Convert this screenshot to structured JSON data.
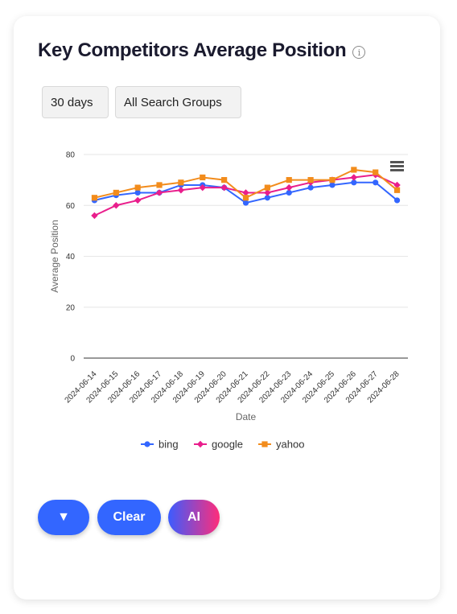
{
  "header": {
    "title": "Key Competitors Average Position",
    "info_icon": "info-circle-icon"
  },
  "filters": {
    "period": "30 days",
    "group": "All Search Groups"
  },
  "chart_data": {
    "type": "line",
    "title": "",
    "xlabel": "Date",
    "ylabel": "Average Position",
    "ylim": [
      0,
      80
    ],
    "yticks": [
      "0",
      "20",
      "40",
      "60",
      "80"
    ],
    "grid": true,
    "legend_position": "bottom",
    "categories": [
      "2024-06-14",
      "2024-06-15",
      "2024-06-16",
      "2024-06-17",
      "2024-06-18",
      "2024-06-19",
      "2024-06-20",
      "2024-06-21",
      "2024-06-22",
      "2024-06-23",
      "2024-06-24",
      "2024-06-25",
      "2024-06-26",
      "2024-06-27",
      "2024-06-28"
    ],
    "series": [
      {
        "name": "bing",
        "color": "#3366ff",
        "marker": "circle",
        "values": [
          62,
          64,
          65,
          65,
          68,
          68,
          67,
          61,
          63,
          65,
          67,
          68,
          69,
          69,
          62
        ]
      },
      {
        "name": "google",
        "color": "#e91e8c",
        "marker": "diamond",
        "values": [
          56,
          60,
          62,
          65,
          66,
          67,
          67,
          65,
          65,
          67,
          69,
          70,
          71,
          72,
          68
        ]
      },
      {
        "name": "yahoo",
        "color": "#f28c1c",
        "marker": "square",
        "values": [
          63,
          65,
          67,
          68,
          69,
          71,
          70,
          63,
          67,
          70,
          70,
          70,
          74,
          73,
          66
        ]
      }
    ],
    "menu_icon": "hamburger-menu-icon"
  },
  "buttons": {
    "filter": "▼",
    "clear": "Clear",
    "ai": "AI"
  }
}
